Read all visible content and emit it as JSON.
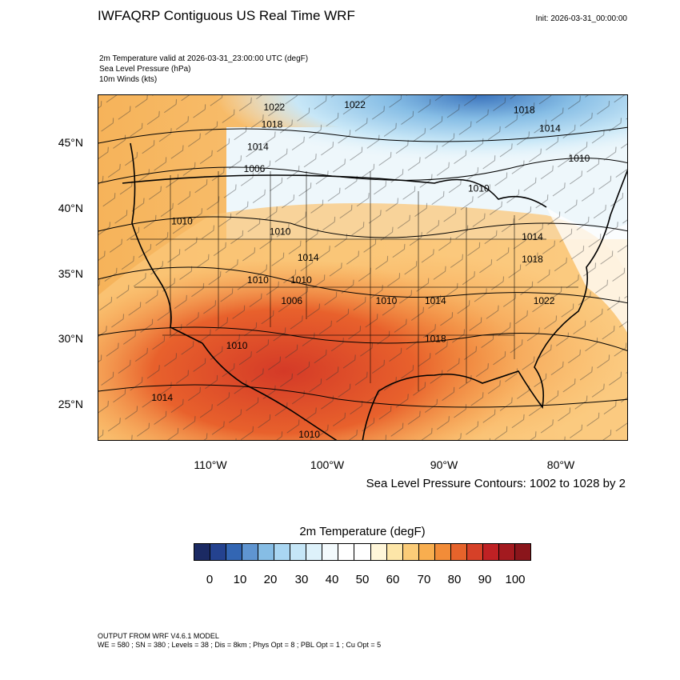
{
  "header": {
    "title": "IWFAQRP Contiguous US Real Time WRF",
    "init": "Init: 2026-03-31_00:00:00"
  },
  "fields": [
    "2m Temperature valid at 2026-03-31_23:00:00 UTC   (degF)",
    "Sea Level Pressure   (hPa)",
    "10m Winds   (kts)"
  ],
  "map": {
    "lat_labels": [
      "45°N",
      "40°N",
      "35°N",
      "30°N",
      "25°N"
    ],
    "lon_labels": [
      "110°W",
      "100°W",
      "90°W",
      "80°W"
    ],
    "contours_note": "Sea Level Pressure Contours: 1002 to 1028 by 2",
    "pressure_labels": [
      {
        "text": "1022",
        "lon": -104.6,
        "lat": 47.8
      },
      {
        "text": "1022",
        "lon": -97.7,
        "lat": 48.0
      },
      {
        "text": "1018",
        "lon": -83.2,
        "lat": 47.6
      },
      {
        "text": "1018",
        "lon": -104.8,
        "lat": 46.5
      },
      {
        "text": "1014",
        "lon": -106.0,
        "lat": 44.8
      },
      {
        "text": "1014",
        "lon": -81.0,
        "lat": 46.2
      },
      {
        "text": "1010",
        "lon": -78.5,
        "lat": 43.9
      },
      {
        "text": "1006",
        "lon": -106.3,
        "lat": 43.1
      },
      {
        "text": "1010",
        "lon": -87.1,
        "lat": 41.6
      },
      {
        "text": "1010",
        "lon": -112.5,
        "lat": 39.1
      },
      {
        "text": "1010",
        "lon": -104.1,
        "lat": 38.3
      },
      {
        "text": "1014",
        "lon": -101.7,
        "lat": 36.3
      },
      {
        "text": "1014",
        "lon": -82.5,
        "lat": 37.9
      },
      {
        "text": "1018",
        "lon": -82.5,
        "lat": 36.2
      },
      {
        "text": "1010",
        "lon": -106.0,
        "lat": 34.6
      },
      {
        "text": "1010",
        "lon": -102.3,
        "lat": 34.6
      },
      {
        "text": "1006",
        "lon": -103.1,
        "lat": 33.0
      },
      {
        "text": "1010",
        "lon": -95.0,
        "lat": 33.0
      },
      {
        "text": "1014",
        "lon": -90.8,
        "lat": 33.0
      },
      {
        "text": "1022",
        "lon": -81.5,
        "lat": 33.0
      },
      {
        "text": "1018",
        "lon": -90.8,
        "lat": 30.1
      },
      {
        "text": "1010",
        "lon": -107.8,
        "lat": 29.6
      },
      {
        "text": "1014",
        "lon": -114.2,
        "lat": 25.6
      },
      {
        "text": "1010",
        "lon": -101.6,
        "lat": 22.8
      }
    ]
  },
  "colorbar": {
    "title": "2m Temperature  (degF)",
    "colors": [
      "#1b2a63",
      "#24428f",
      "#3366b3",
      "#5f95d1",
      "#86bde5",
      "#a9d6f2",
      "#c5e6f7",
      "#ddf1fa",
      "#f3fafd",
      "#ffffff",
      "#ffffff",
      "#fff6d9",
      "#fde6a8",
      "#fbcc78",
      "#f8ae4f",
      "#f28c38",
      "#e6632b",
      "#d64128",
      "#bf2124",
      "#a31a1f",
      "#8a151b"
    ],
    "ticks": [
      "0",
      "10",
      "20",
      "30",
      "40",
      "50",
      "60",
      "70",
      "80",
      "90",
      "100"
    ]
  },
  "footer": [
    "OUTPUT FROM WRF V4.6.1 MODEL",
    "WE = 580 ; SN = 380 ; Levels = 38 ; Dis = 8km ; Phys Opt = 8 ; PBL Opt = 1 ; Cu Opt = 5"
  ]
}
